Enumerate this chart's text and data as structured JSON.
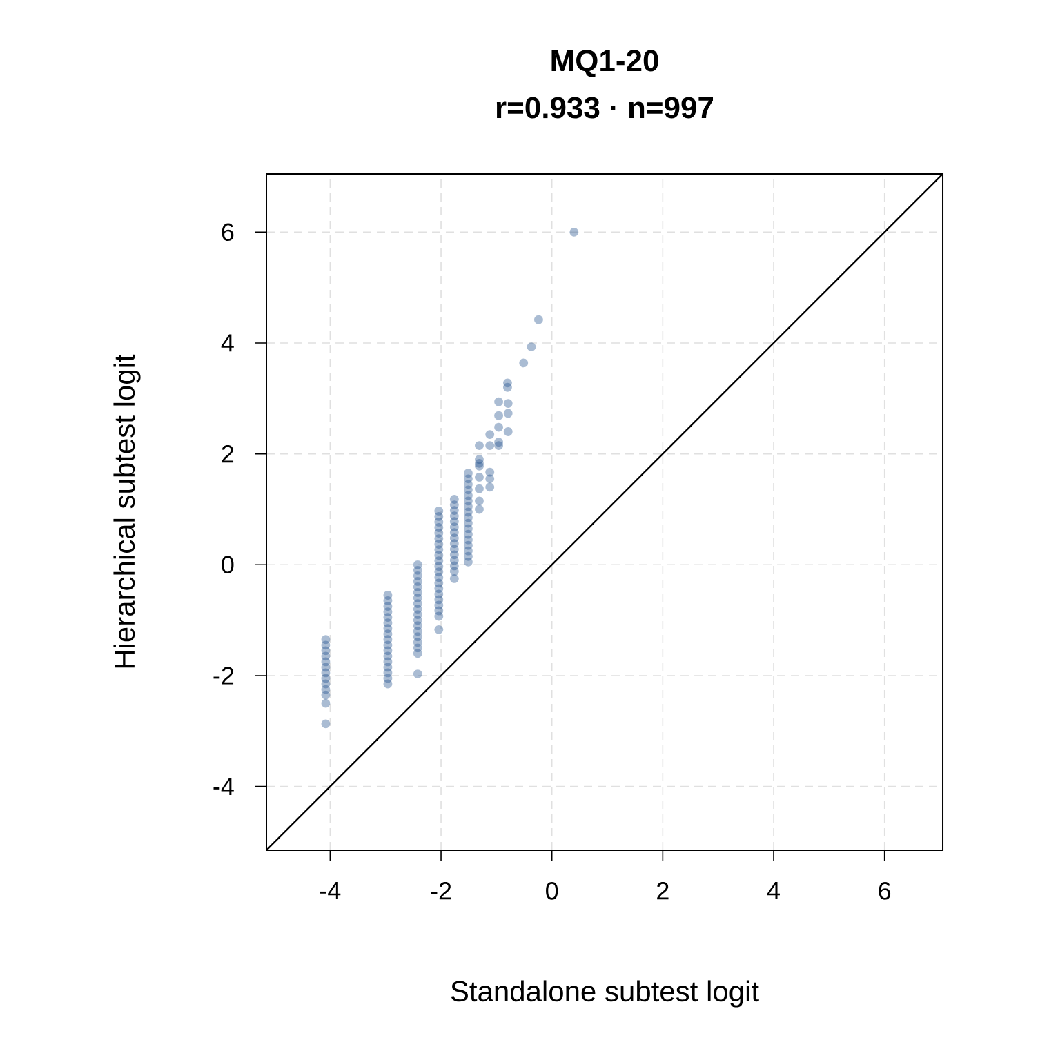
{
  "chart_data": {
    "type": "scatter",
    "title": "MQ1-20",
    "subtitle": "r=0.933 · n=997",
    "xlabel": "Standalone subtest logit",
    "ylabel": "Hierarchical subtest logit",
    "xlim": [
      -5.15,
      7.05
    ],
    "ylim": [
      -5.15,
      7.05
    ],
    "xticks": [
      -4,
      -2,
      0,
      2,
      4,
      6
    ],
    "yticks": [
      -4,
      -2,
      0,
      2,
      4,
      6
    ],
    "grid": true,
    "series": [
      {
        "marker": "circle",
        "color": "#1f4e8c",
        "x": [
          -4.08,
          -4.08,
          -4.08,
          -4.08,
          -4.08,
          -4.08,
          -4.08,
          -4.08,
          -4.08,
          -4.08,
          -4.08,
          -4.08,
          -4.08,
          -2.96,
          -2.96,
          -2.96,
          -2.96,
          -2.96,
          -2.96,
          -2.96,
          -2.96,
          -2.96,
          -2.96,
          -2.96,
          -2.96,
          -2.96,
          -2.96,
          -2.96,
          -2.96,
          -2.96,
          -2.42,
          -2.42,
          -2.42,
          -2.42,
          -2.42,
          -2.42,
          -2.42,
          -2.42,
          -2.42,
          -2.42,
          -2.42,
          -2.42,
          -2.42,
          -2.42,
          -2.42,
          -2.42,
          -2.42,
          -2.42,
          -2.04,
          -2.04,
          -2.04,
          -2.04,
          -2.04,
          -2.04,
          -2.04,
          -2.04,
          -2.04,
          -2.04,
          -2.04,
          -2.04,
          -2.04,
          -2.04,
          -2.04,
          -2.04,
          -2.04,
          -2.04,
          -2.04,
          -2.04,
          -2.04,
          -1.76,
          -1.76,
          -1.76,
          -1.76,
          -1.76,
          -1.76,
          -1.76,
          -1.76,
          -1.76,
          -1.76,
          -1.76,
          -1.76,
          -1.76,
          -1.76,
          -1.76,
          -1.51,
          -1.51,
          -1.51,
          -1.51,
          -1.51,
          -1.51,
          -1.51,
          -1.51,
          -1.51,
          -1.51,
          -1.51,
          -1.51,
          -1.51,
          -1.51,
          -1.51,
          -1.51,
          -1.51,
          -1.31,
          -1.31,
          -1.31,
          -1.31,
          -1.31,
          -1.31,
          -1.31,
          -1.31,
          -1.12,
          -1.12,
          -1.12,
          -1.12,
          -1.12,
          -0.96,
          -0.96,
          -0.96,
          -0.96,
          -0.96,
          -0.79,
          -0.79,
          -0.79,
          -0.8,
          -0.8,
          -0.51,
          -0.37,
          -0.24,
          0.4
        ],
        "values": [
          -1.35,
          -1.45,
          -1.55,
          -1.65,
          -1.75,
          -1.85,
          -1.95,
          -2.05,
          -2.15,
          -2.25,
          -2.35,
          -2.5,
          -2.87,
          -0.55,
          -0.65,
          -0.75,
          -0.85,
          -0.95,
          -1.05,
          -1.15,
          -1.25,
          -1.35,
          -1.45,
          -1.55,
          -1.65,
          -1.75,
          -1.85,
          -1.95,
          -2.05,
          -2.15,
          0,
          -0.1,
          -0.2,
          -0.3,
          -0.4,
          -0.5,
          -0.6,
          -0.7,
          -0.8,
          -0.9,
          -1.0,
          -1.1,
          -1.2,
          -1.3,
          -1.4,
          -1.5,
          -1.6,
          -1.97,
          0.97,
          0.87,
          0.77,
          0.67,
          0.57,
          0.47,
          0.37,
          0.27,
          0.17,
          0.07,
          -0.03,
          -0.13,
          -0.23,
          -0.33,
          -0.43,
          -0.53,
          -0.63,
          -0.73,
          -0.83,
          -0.93,
          -1.17,
          1.18,
          1.08,
          0.98,
          0.88,
          0.78,
          0.68,
          0.58,
          0.48,
          0.38,
          0.28,
          0.18,
          0.08,
          -0.02,
          -0.12,
          -0.25,
          1.65,
          1.55,
          1.45,
          1.35,
          1.25,
          1.15,
          1.05,
          0.95,
          0.85,
          0.75,
          0.65,
          0.55,
          0.45,
          0.35,
          0.25,
          0.15,
          0.05,
          1.9,
          1.83,
          1.78,
          1.58,
          1.37,
          1.15,
          1.0,
          2.15,
          1.67,
          1.55,
          1.4,
          2.35,
          2.15,
          2.94,
          2.69,
          2.48,
          2.21,
          2.15,
          2.91,
          2.73,
          2.4,
          3.28,
          3.2,
          3.64,
          3.93,
          4.42,
          6.0
        ]
      },
      {
        "type": "line",
        "marker": "none",
        "color": "#000000",
        "x": [
          -5.15,
          7.05
        ],
        "values": [
          -5.15,
          7.05
        ]
      }
    ]
  }
}
